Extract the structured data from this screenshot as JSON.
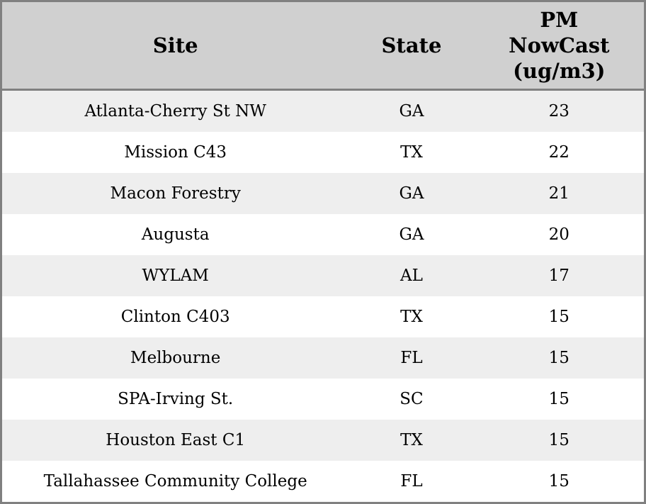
{
  "chart_data": {
    "type": "table",
    "title": "",
    "columns": [
      "Site",
      "State",
      "PM NowCast (ug/m3)"
    ],
    "rows": [
      [
        "Atlanta-Cherry St NW",
        "GA",
        23
      ],
      [
        "Mission C43",
        "TX",
        22
      ],
      [
        "Macon Forestry",
        "GA",
        21
      ],
      [
        "Augusta",
        "GA",
        20
      ],
      [
        "WYLAM",
        "AL",
        17
      ],
      [
        "Clinton C403",
        "TX",
        15
      ],
      [
        "Melbourne",
        "FL",
        15
      ],
      [
        "SPA-Irving St.",
        "SC",
        15
      ],
      [
        "Houston East C1",
        "TX",
        15
      ],
      [
        "Tallahassee Community College",
        "FL",
        15
      ]
    ]
  },
  "table": {
    "header": {
      "site": "Site",
      "state": "State",
      "pm": "PM\nNowCast\n(ug/m3)"
    },
    "rows": [
      {
        "site": "Atlanta-Cherry St NW",
        "state": "GA",
        "value": "23"
      },
      {
        "site": "Mission C43",
        "state": "TX",
        "value": "22"
      },
      {
        "site": "Macon Forestry",
        "state": "GA",
        "value": "21"
      },
      {
        "site": "Augusta",
        "state": "GA",
        "value": "20"
      },
      {
        "site": "WYLAM",
        "state": "AL",
        "value": "17"
      },
      {
        "site": "Clinton C403",
        "state": "TX",
        "value": "15"
      },
      {
        "site": "Melbourne",
        "state": "FL",
        "value": "15"
      },
      {
        "site": "SPA-Irving St.",
        "state": "SC",
        "value": "15"
      },
      {
        "site": "Houston East C1",
        "state": "TX",
        "value": "15"
      },
      {
        "site": "Tallahassee Community College",
        "state": "FL",
        "value": "15"
      }
    ]
  },
  "colors": {
    "header_bg": "#d0d0d0",
    "stripe_row_bg": "#eeeeee",
    "plain_row_bg": "#ffffff",
    "border": "#808080",
    "text": "#000000"
  }
}
